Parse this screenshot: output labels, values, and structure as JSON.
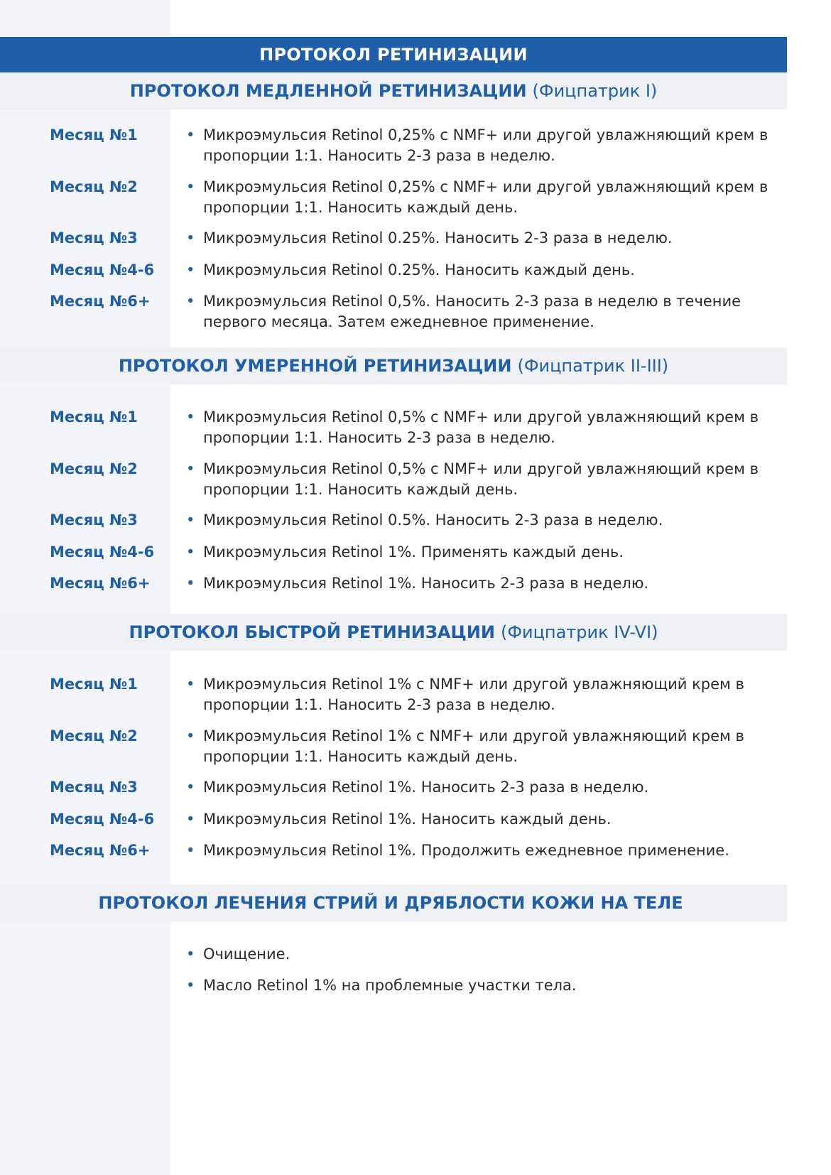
{
  "title": "ПРОТОКОЛ РЕТИНИЗАЦИИ",
  "colors": {
    "accent": "#1f5ea8",
    "band": "#eef0f4",
    "sidebar": "#f3f5fa"
  },
  "sections": [
    {
      "title": "ПРОТОКОЛ МЕДЛЕННОЙ РЕТИНИЗАЦИИ",
      "subtitle": "(Фицпатрик I)",
      "rows": [
        {
          "month": "Месяц №1",
          "text": "Микроэмульсия Retinol 0,25% с NMF+ или другой увлажняющий крем в пропорции 1:1. Наносить 2-3 раза в неделю."
        },
        {
          "month": "Месяц №2",
          "text": "Микроэмульсия Retinol 0,25% с NMF+ или другой увлажняющий крем в пропорции 1:1. Наносить каждый день."
        },
        {
          "month": "Месяц №3",
          "text": "Микроэмульсия Retinol 0.25%. Наносить 2-3 раза в неделю."
        },
        {
          "month": "Месяц №4-6",
          "text": "Микроэмульсия Retinol 0.25%. Наносить каждый день."
        },
        {
          "month": "Месяц №6+",
          "text": "Микроэмульсия Retinol 0,5%. Наносить 2-3 раза в неделю в течение первого месяца. Затем ежедневное применение."
        }
      ]
    },
    {
      "title": "ПРОТОКОЛ УМЕРЕННОЙ РЕТИНИЗАЦИИ",
      "subtitle": "(Фицпатрик II-III)",
      "rows": [
        {
          "month": "Месяц №1",
          "text": "Микроэмульсия Retinol 0,5% с NMF+ или другой увлажняющий крем в пропорции 1:1. Наносить 2-3 раза в неделю."
        },
        {
          "month": "Месяц №2",
          "text": "Микроэмульсия Retinol 0,5% с NMF+ или другой увлажняющий крем в пропорции 1:1. Наносить каждый день."
        },
        {
          "month": "Месяц №3",
          "text": "Микроэмульсия Retinol 0.5%. Наносить 2-3 раза в неделю."
        },
        {
          "month": "Месяц №4-6",
          "text": "Микроэмульсия Retinol 1%. Применять каждый день."
        },
        {
          "month": "Месяц №6+",
          "text": "Микроэмульсия Retinol 1%. Наносить 2-3 раза в неделю."
        }
      ]
    },
    {
      "title": "ПРОТОКОЛ БЫСТРОЙ РЕТИНИЗАЦИИ",
      "subtitle": "(Фицпатрик IV-VI)",
      "rows": [
        {
          "month": "Месяц №1",
          "text": "Микроэмульсия Retinol 1% с NMF+ или другой увлажняющий крем в пропорции 1:1. Наносить 2-3 раза в неделю."
        },
        {
          "month": "Месяц №2",
          "text": "Микроэмульсия Retinol 1% с NMF+ или другой увлажняющий крем в пропорции 1:1. Наносить каждый день."
        },
        {
          "month": "Месяц №3",
          "text": "Микроэмульсия Retinol 1%. Наносить 2-3 раза в неделю."
        },
        {
          "month": "Месяц №4-6",
          "text": "Микроэмульсия Retinol 1%. Наносить каждый день."
        },
        {
          "month": "Месяц №6+",
          "text": "Микроэмульсия Retinol 1%. Продолжить ежедневное применение."
        }
      ]
    },
    {
      "title": "ПРОТОКОЛ ЛЕЧЕНИЯ СТРИЙ И ДРЯБЛОСТИ КОЖИ НА ТЕЛЕ",
      "subtitle": "",
      "rows": [
        {
          "month": "",
          "text": "Очищение."
        },
        {
          "month": "",
          "text": "Масло Retinol 1% на проблемные участки тела."
        }
      ]
    }
  ]
}
